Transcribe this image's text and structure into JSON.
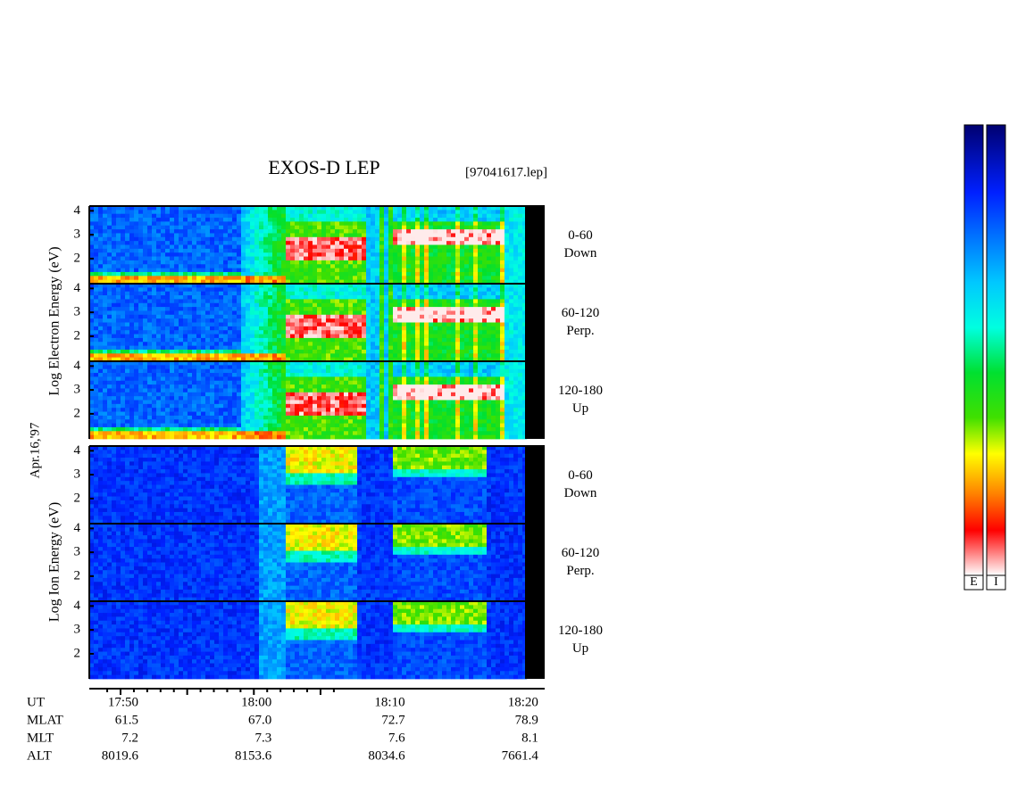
{
  "title": "EXOS-D LEP",
  "file": "[97041617.lep]",
  "date": "Apr.16,'97",
  "electron_axis_label": "Log Electron Energy (eV)",
  "ion_axis_label": "Log Ion Energy (eV)",
  "ylim": [
    0.95,
    4.2
  ],
  "yticks": [
    2,
    3,
    4
  ],
  "panels": [
    {
      "angle": "0-60",
      "direction": "Down"
    },
    {
      "angle": "60-120",
      "direction": "Perp."
    },
    {
      "angle": "120-180",
      "direction": "Up"
    },
    {
      "angle": "0-60",
      "direction": "Down"
    },
    {
      "angle": "60-120",
      "direction": "Perp."
    },
    {
      "angle": "120-180",
      "direction": "Up"
    }
  ],
  "orbit": {
    "headers": [
      "UT",
      "MLAT",
      "MLT",
      "ALT"
    ],
    "columns": [
      [
        "17:50",
        "61.5",
        "7.2",
        "8019.6"
      ],
      [
        "18:00",
        "67.0",
        "7.3",
        "8153.6"
      ],
      [
        "18:10",
        "72.7",
        "7.6",
        "8034.6"
      ],
      [
        "18:20",
        "78.9",
        "8.1",
        "7661.4"
      ]
    ]
  },
  "colorbar_labels": [
    "E",
    "I"
  ]
}
